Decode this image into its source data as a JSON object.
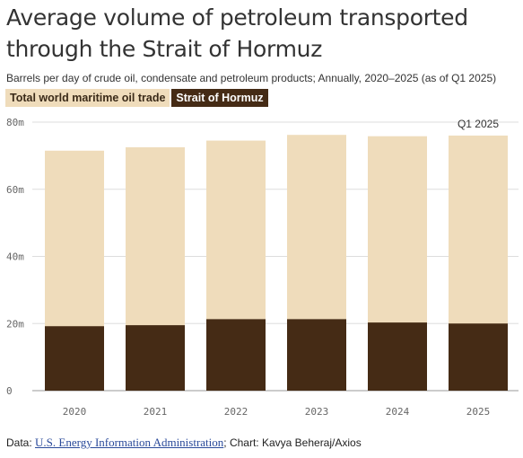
{
  "title": "Average volume of petroleum transported through the Strait of Hormuz",
  "subtitle": "Barrels per day of crude oil, condensate and petroleum products; Annually, 2020–2025 (as of Q1 2025)",
  "source": {
    "prefix": "Data: ",
    "link_text": "U.S. Energy Information Administration",
    "suffix": "; Chart: Kavya Beheraj/Axios"
  },
  "colors": {
    "world": "#efdcbb",
    "hormuz": "#452b15",
    "grid": "#dddddd"
  },
  "chart_data": {
    "type": "bar",
    "stacked": false,
    "overlapping": true,
    "categories": [
      "2020",
      "2021",
      "2022",
      "2023",
      "2024",
      "2025"
    ],
    "series": [
      {
        "name": "Total world maritime oil trade",
        "values": [
          71.5,
          72.5,
          74.5,
          76.2,
          75.8,
          76.0
        ]
      },
      {
        "name": "Strait of Hormuz",
        "values": [
          19.2,
          19.5,
          21.3,
          21.3,
          20.3,
          20.0
        ]
      }
    ],
    "ylim": [
      0,
      80
    ],
    "yticks": [
      0,
      20,
      40,
      60,
      80
    ],
    "ytick_labels": [
      "0",
      "20m",
      "40m",
      "60m",
      "80m"
    ],
    "annotations": [
      {
        "category": "2025",
        "text": "Q1 2025"
      }
    ],
    "grid": true,
    "legend_position": "top-left"
  }
}
